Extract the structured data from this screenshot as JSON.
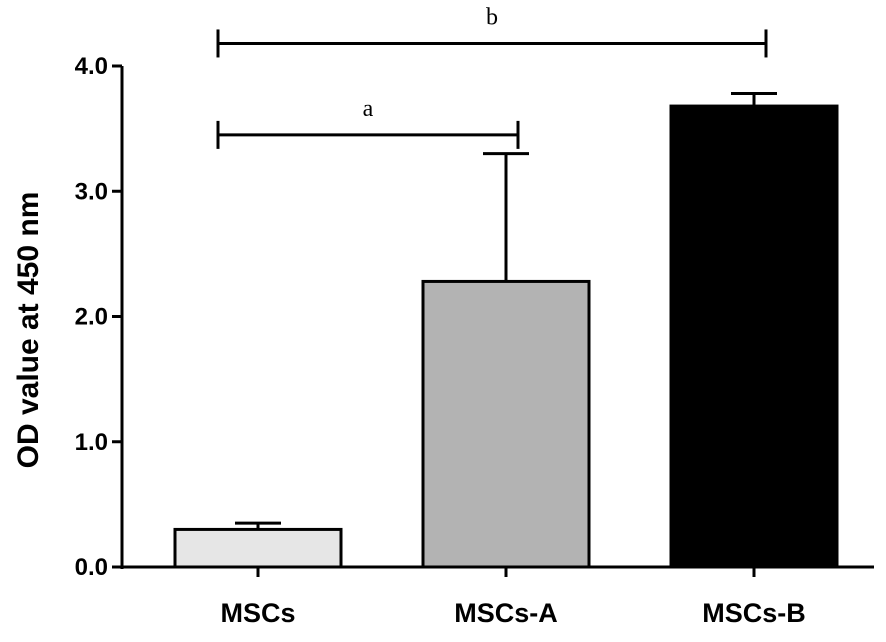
{
  "chart_data": {
    "type": "bar",
    "categories": [
      "MSCs",
      "MSCs-A",
      "MSCs-B"
    ],
    "values": [
      0.3,
      2.28,
      3.68
    ],
    "errors": [
      0.05,
      1.02,
      0.1
    ],
    "bar_colors": [
      "#e6e6e6",
      "#b3b3b3",
      "#000000"
    ],
    "ylabel": "OD value at 450 nm",
    "xlabel": "",
    "ylim": [
      0,
      4.0
    ],
    "yticks": [
      0.0,
      1.0,
      2.0,
      3.0,
      4.0
    ],
    "ytick_labels": [
      "0.0",
      "1.0",
      "2.0",
      "3.0",
      "4.0"
    ],
    "significance": [
      {
        "label": "a",
        "from": 0,
        "to": 1,
        "y": 3.45
      },
      {
        "label": "b",
        "from": 0,
        "to": 2,
        "y": 4.18
      }
    ],
    "grid": false,
    "legend": "none"
  }
}
